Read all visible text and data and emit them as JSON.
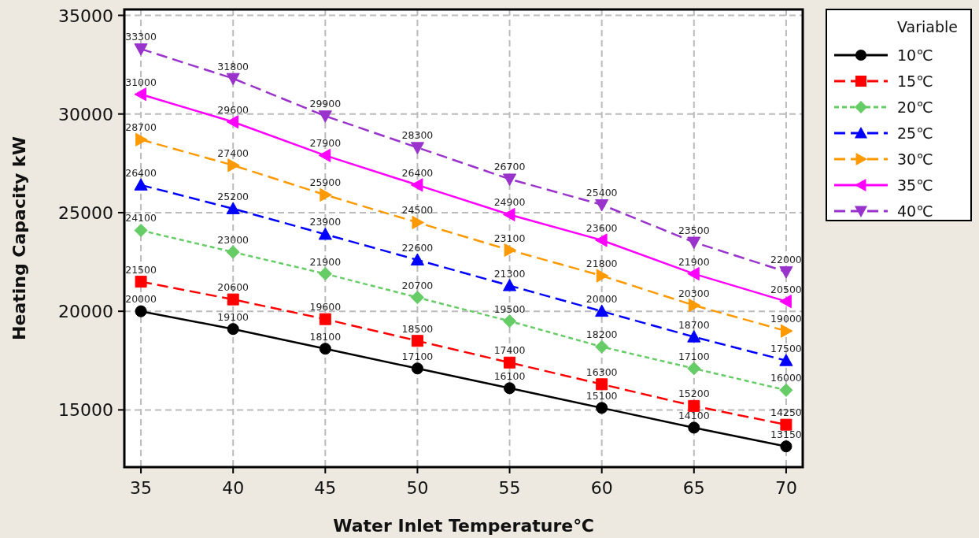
{
  "chart_data": {
    "type": "line",
    "xlabel": "Water Inlet Temperature℃",
    "ylabel": "Heating Capacity  kW",
    "legend_title": "Variable",
    "legend": "right",
    "grid": true,
    "data_labels": true,
    "x": [
      35,
      40,
      45,
      50,
      55,
      60,
      65,
      70
    ],
    "xlim": [
      34.1,
      70.9
    ],
    "xticks": [
      35,
      40,
      45,
      50,
      55,
      60,
      65,
      70
    ],
    "ylim": [
      12100,
      35300
    ],
    "yticks": [
      15000,
      20000,
      25000,
      30000,
      35000
    ],
    "series": [
      {
        "name": "10℃",
        "color": "#000000",
        "marker": "circle",
        "line_style": "solid",
        "values": [
          20000,
          19100,
          18100,
          17100,
          16100,
          15100,
          14100,
          13150
        ]
      },
      {
        "name": "15℃",
        "color": "#ff0000",
        "marker": "square",
        "line_style": "dashed",
        "values": [
          21500,
          20600,
          19600,
          18500,
          17400,
          16300,
          15200,
          14250
        ]
      },
      {
        "name": "20℃",
        "color": "#66cc66",
        "marker": "diamond",
        "line_style": "dotted",
        "values": [
          24100,
          23000,
          21900,
          20700,
          19500,
          18200,
          17100,
          16000
        ]
      },
      {
        "name": "25℃",
        "color": "#0000ff",
        "marker": "triangle",
        "line_style": "dashed",
        "values": [
          26400,
          25200,
          23900,
          22600,
          21300,
          20000,
          18700,
          17500
        ]
      },
      {
        "name": "30℃",
        "color": "#ff9900",
        "marker": "triangle-right",
        "line_style": "dashed",
        "values": [
          28700,
          27400,
          25900,
          24500,
          23100,
          21800,
          20300,
          19000
        ]
      },
      {
        "name": "35℃",
        "color": "#ff00ff",
        "marker": "triangle-left",
        "line_style": "solid",
        "values": [
          31000,
          29600,
          27900,
          26400,
          24900,
          23600,
          21900,
          20500
        ]
      },
      {
        "name": "40℃",
        "color": "#9933cc",
        "marker": "triangle-down",
        "line_style": "dashed",
        "values": [
          33300,
          31800,
          29900,
          28300,
          26700,
          25400,
          23500,
          22000
        ]
      }
    ]
  }
}
